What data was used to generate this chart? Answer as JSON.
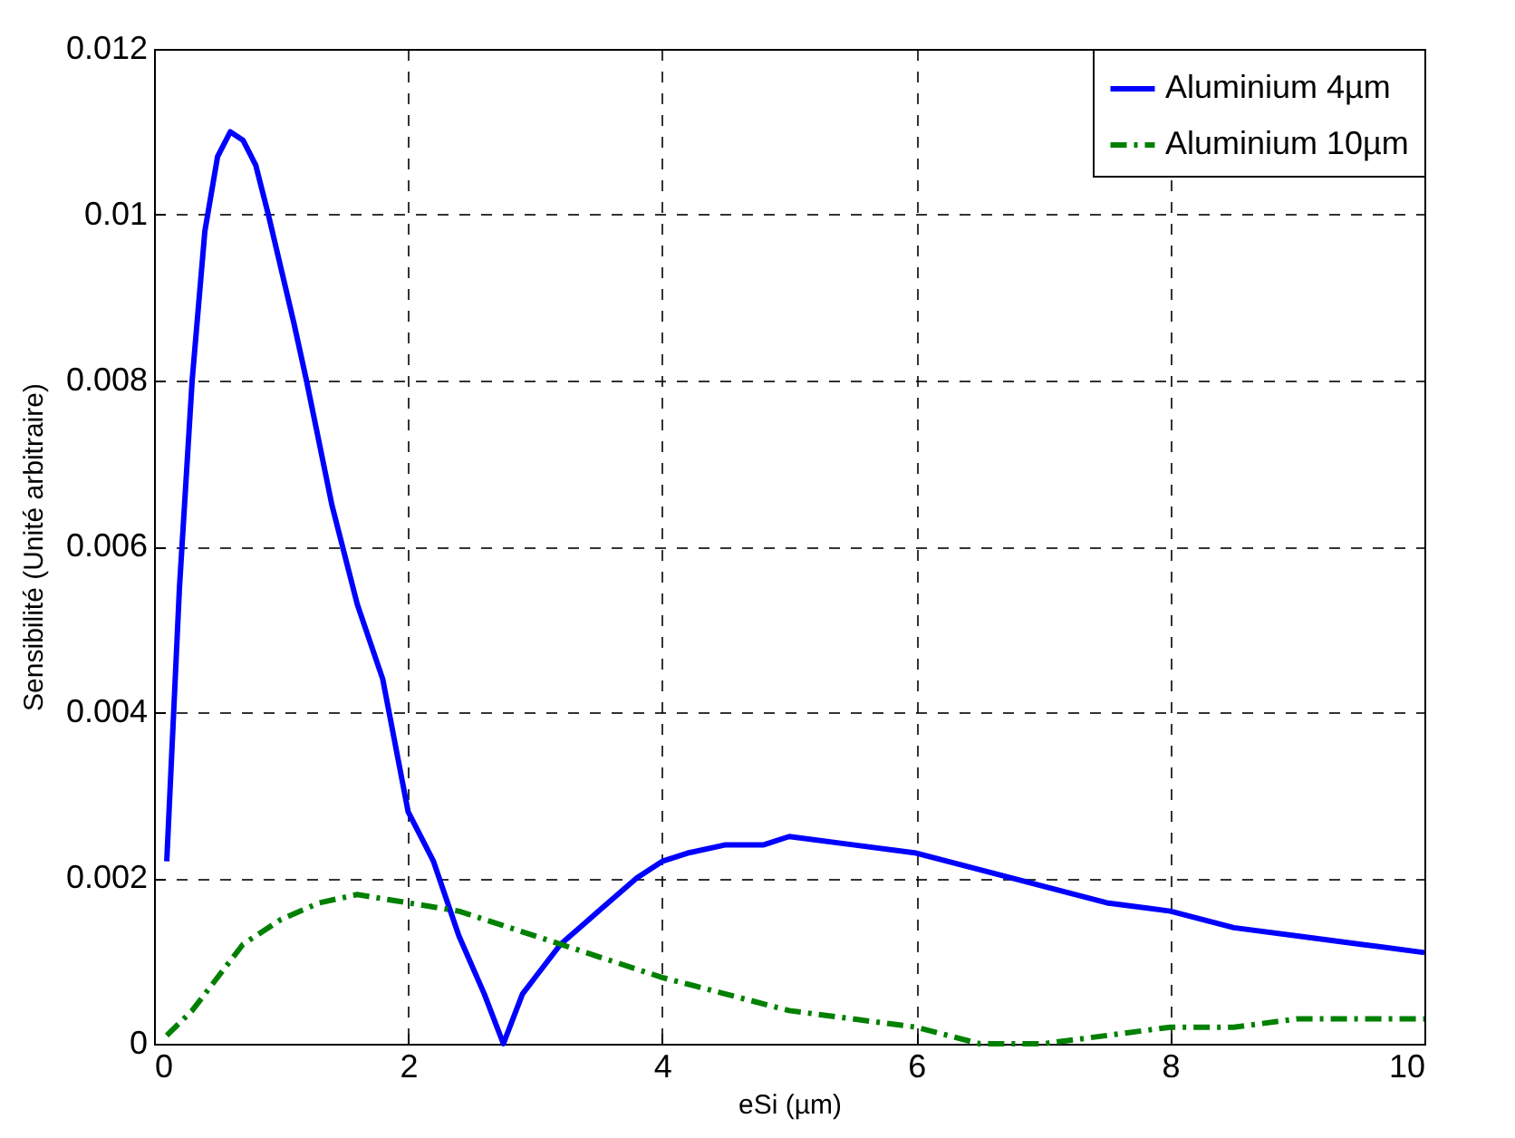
{
  "chart_data": {
    "type": "line",
    "xlabel": "eSi (µm)",
    "ylabel": "Sensibilité (Unité arbitraire)",
    "xlim": [
      0,
      10
    ],
    "xticks": [
      0,
      2,
      4,
      6,
      8,
      10
    ],
    "ylim": [
      0,
      0.012
    ],
    "yticks": [
      0,
      0.002,
      0.004,
      0.006,
      0.008,
      0.01,
      0.012
    ],
    "grid": true,
    "legend": "top right",
    "marker": "none",
    "series": [
      {
        "name": "Aluminium 4µm",
        "color": "#0000ff",
        "line_style": "solid",
        "x": [
          0.1,
          0.2,
          0.3,
          0.4,
          0.5,
          0.6,
          0.7,
          0.8,
          0.9,
          1.1,
          1.2,
          1.4,
          1.6,
          1.8,
          2.0,
          2.2,
          2.4,
          2.6,
          2.75,
          2.9,
          3.0,
          3.2,
          3.5,
          3.8,
          4.0,
          4.2,
          4.5,
          4.8,
          5.0,
          5.5,
          6.0,
          6.5,
          7.0,
          7.5,
          8.0,
          8.5,
          9.0,
          9.5,
          10
        ],
        "values": [
          0.0022,
          0.0055,
          0.008,
          0.0098,
          0.0107,
          0.011,
          0.0109,
          0.0106,
          0.01,
          0.0087,
          0.008,
          0.0065,
          0.0053,
          0.0044,
          0.0028,
          0.0022,
          0.0013,
          0.0006,
          0,
          0.0006,
          0.0008,
          0.0012,
          0.0016,
          0.002,
          0.0022,
          0.0023,
          0.0024,
          0.0024,
          0.0025,
          0.0024,
          0.0023,
          0.0021,
          0.0019,
          0.0017,
          0.0016,
          0.0014,
          0.0013,
          0.0012,
          0.0011
        ]
      },
      {
        "name": "Aluminium 10µm",
        "color": "#008000",
        "line_style": "dashdot",
        "x": [
          0.1,
          0.3,
          0.5,
          0.7,
          1.0,
          1.3,
          1.6,
          2.0,
          2.4,
          2.8,
          3.2,
          3.6,
          4.0,
          4.5,
          5.0,
          5.5,
          6.0,
          6.5,
          7.0,
          7.5,
          8.0,
          8.5,
          9.0,
          9.5,
          10
        ],
        "values": [
          0.0001,
          0.0004,
          0.0008,
          0.0012,
          0.0015,
          0.0017,
          0.0018,
          0.0017,
          0.0016,
          0.0014,
          0.0012,
          0.001,
          0.0008,
          0.0006,
          0.0004,
          0.0003,
          0.0002,
          0,
          0,
          0.0001,
          0.0002,
          0.0002,
          0.0003,
          0.0003,
          0.0003
        ]
      }
    ]
  }
}
